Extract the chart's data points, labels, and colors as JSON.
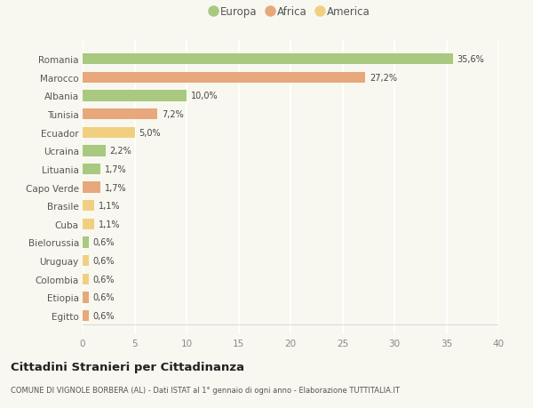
{
  "categories": [
    "Romania",
    "Marocco",
    "Albania",
    "Tunisia",
    "Ecuador",
    "Ucraina",
    "Lituania",
    "Capo Verde",
    "Brasile",
    "Cuba",
    "Bielorussia",
    "Uruguay",
    "Colombia",
    "Etiopia",
    "Egitto"
  ],
  "values": [
    35.6,
    27.2,
    10.0,
    7.2,
    5.0,
    2.2,
    1.7,
    1.7,
    1.1,
    1.1,
    0.6,
    0.6,
    0.6,
    0.6,
    0.6
  ],
  "labels": [
    "35,6%",
    "27,2%",
    "10,0%",
    "7,2%",
    "5,0%",
    "2,2%",
    "1,7%",
    "1,7%",
    "1,1%",
    "1,1%",
    "0,6%",
    "0,6%",
    "0,6%",
    "0,6%",
    "0,6%"
  ],
  "continent": [
    "Europa",
    "Africa",
    "Europa",
    "Africa",
    "America",
    "Europa",
    "Europa",
    "Africa",
    "America",
    "America",
    "Europa",
    "America",
    "America",
    "Africa",
    "Africa"
  ],
  "colors": {
    "Europa": "#a8c97f",
    "Africa": "#e8a87c",
    "America": "#f0d080"
  },
  "title": "Cittadini Stranieri per Cittadinanza",
  "subtitle": "COMUNE DI VIGNOLE BORBERA (AL) - Dati ISTAT al 1° gennaio di ogni anno - Elaborazione TUTTITALIA.IT",
  "xlim": [
    0,
    40
  ],
  "xticks": [
    0,
    5,
    10,
    15,
    20,
    25,
    30,
    35,
    40
  ],
  "background_color": "#f8f8f0",
  "grid_color": "#ffffff",
  "bar_height": 0.6
}
